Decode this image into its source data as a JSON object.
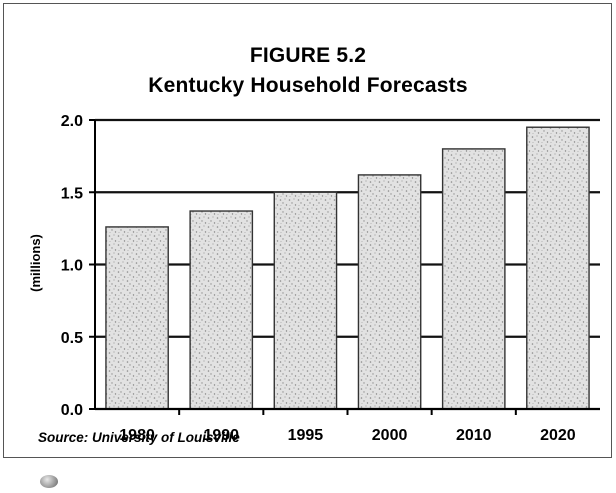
{
  "figure": {
    "title_line1": "FIGURE 5.2",
    "title_line2": "Kentucky Household Forecasts",
    "source": "Source: University of Louisville"
  },
  "chart_data": {
    "type": "bar",
    "title": "FIGURE 5.2 Kentucky Household Forecasts",
    "ylabel": "(millions)",
    "categories": [
      "1980",
      "1990",
      "1995",
      "2000",
      "2010",
      "2020"
    ],
    "values": [
      1.26,
      1.37,
      1.5,
      1.62,
      1.8,
      1.95
    ],
    "ylim": [
      0,
      2.0
    ],
    "yticks": [
      "0.0",
      "0.5",
      "1.0",
      "1.5",
      "2.0"
    ],
    "grid": true,
    "bar_color": "#dcdcdc"
  }
}
